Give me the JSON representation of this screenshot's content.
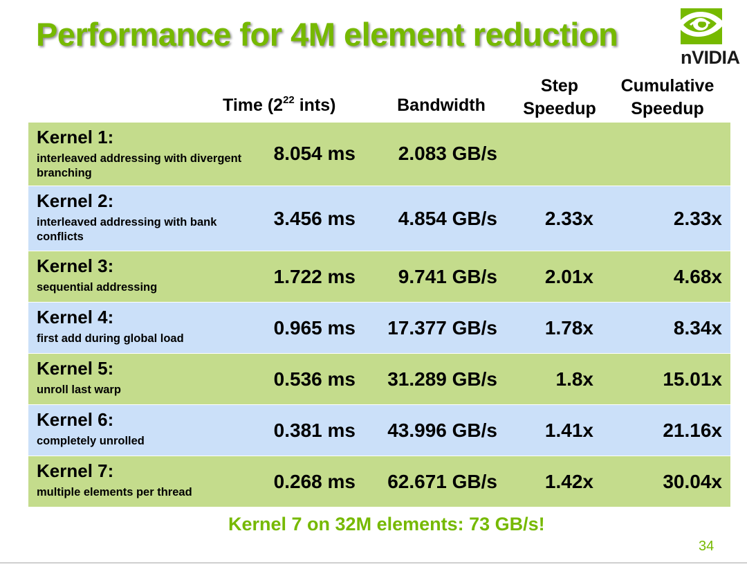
{
  "title": "Performance for 4M element reduction",
  "logo_text": "nVIDIA",
  "columns": {
    "time_prefix": "Time (2",
    "time_exp": "22",
    "time_suffix": " ints)",
    "bandwidth": "Bandwidth",
    "step_line1": "Step",
    "step_line2": "Speedup",
    "cumulative_line1": "Cumulative",
    "cumulative_line2": "Speedup"
  },
  "rows": [
    {
      "name": "Kernel 1:",
      "desc": "interleaved addressing with divergent branching",
      "time": "8.054 ms",
      "bandwidth": "2.083 GB/s",
      "step": "",
      "cumulative": ""
    },
    {
      "name": "Kernel 2:",
      "desc": "interleaved addressing with bank conflicts",
      "time": "3.456 ms",
      "bandwidth": "4.854 GB/s",
      "step": "2.33x",
      "cumulative": "2.33x"
    },
    {
      "name": "Kernel 3:",
      "desc": "sequential addressing",
      "time": "1.722 ms",
      "bandwidth": "9.741 GB/s",
      "step": "2.01x",
      "cumulative": "4.68x"
    },
    {
      "name": "Kernel 4:",
      "desc": "first add during global load",
      "time": "0.965 ms",
      "bandwidth": "17.377 GB/s",
      "step": "1.78x",
      "cumulative": "8.34x"
    },
    {
      "name": "Kernel 5:",
      "desc": "unroll last warp",
      "time": "0.536 ms",
      "bandwidth": "31.289 GB/s",
      "step": "1.8x",
      "cumulative": "15.01x"
    },
    {
      "name": "Kernel 6:",
      "desc": "completely unrolled",
      "time": "0.381 ms",
      "bandwidth": "43.996 GB/s",
      "step": "1.41x",
      "cumulative": "21.16x"
    },
    {
      "name": "Kernel 7:",
      "desc": "multiple elements per thread",
      "time": "0.268 ms",
      "bandwidth": "62.671 GB/s",
      "step": "1.42x",
      "cumulative": "30.04x"
    }
  ],
  "footnote": "Kernel 7 on 32M elements: 73 GB/s!",
  "page_number": "34",
  "colors": {
    "accent_green": "#76b900",
    "row_green": "#c4dc8c",
    "row_blue": "#cbe0f9"
  },
  "icons": {
    "logo": "nvidia-eye-logo-icon"
  }
}
